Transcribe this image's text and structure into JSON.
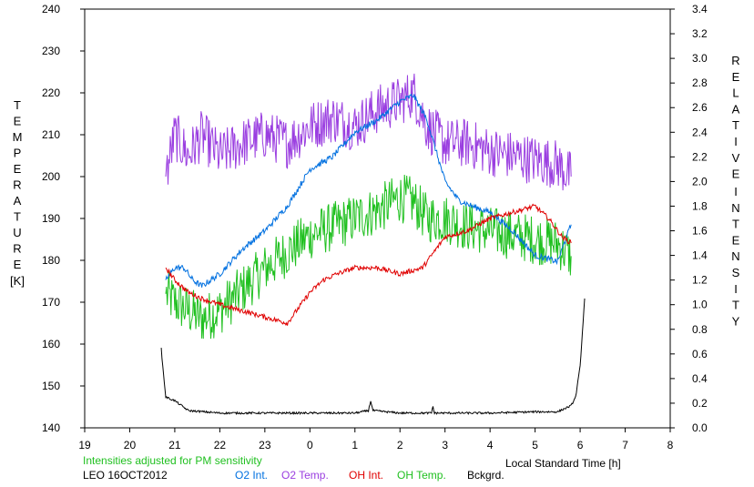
{
  "chart_data": {
    "type": "line",
    "xlabel": "Local Standard Time [h]",
    "ylabel_left": "TEMPERATURE",
    "ylabel_left_unit": "[K]",
    "ylabel_right": "RELATIVE INTENSITY",
    "x_ticks": [
      19,
      20,
      21,
      22,
      23,
      0,
      1,
      2,
      3,
      4,
      5,
      6,
      7,
      8
    ],
    "xlim": [
      19,
      32
    ],
    "ylim_left": [
      140,
      240
    ],
    "ylim_right": [
      0.0,
      3.4
    ],
    "y_ticks_left": [
      140,
      150,
      160,
      170,
      180,
      190,
      200,
      210,
      220,
      230,
      240
    ],
    "y_ticks_right": [
      "0.0",
      "0.2",
      "0.4",
      "0.6",
      "0.8",
      "1.0",
      "1.2",
      "1.4",
      "1.6",
      "1.8",
      "2.0",
      "2.2",
      "2.4",
      "2.6",
      "2.8",
      "3.0",
      "3.2",
      "3.4"
    ],
    "note": "Intensities adjusted for PM sensitivity",
    "site_date": "LEO 16OCT2012",
    "series": [
      {
        "name": "O2 Int.",
        "axis": "right",
        "color": "#0070e0",
        "x": [
          20.8,
          21.0,
          21.2,
          21.4,
          21.6,
          22.0,
          22.5,
          23.0,
          23.5,
          24.0,
          24.5,
          25.0,
          25.5,
          26.0,
          26.3,
          26.6,
          27.0,
          27.3,
          27.6,
          28.0,
          28.5,
          29.0,
          29.5,
          29.8
        ],
        "y": [
          1.2,
          1.3,
          1.3,
          1.2,
          1.15,
          1.25,
          1.45,
          1.6,
          1.8,
          2.1,
          2.2,
          2.4,
          2.5,
          2.65,
          2.7,
          2.5,
          2.0,
          1.85,
          1.8,
          1.75,
          1.6,
          1.4,
          1.35,
          1.65
        ]
      },
      {
        "name": "O2 Temp.",
        "axis": "left",
        "color": "#9a3ee0",
        "x": [
          20.8,
          21.0,
          21.3,
          21.6,
          22.0,
          22.5,
          23.0,
          23.5,
          24.0,
          24.5,
          25.0,
          25.5,
          26.0,
          26.3,
          26.6,
          27.0,
          27.5,
          28.0,
          28.5,
          29.0,
          29.5,
          29.8
        ],
        "y": [
          200,
          210,
          205,
          210,
          205,
          208,
          210,
          208,
          212,
          214,
          212,
          216,
          218,
          220,
          212,
          208,
          208,
          206,
          205,
          204,
          203,
          200
        ]
      },
      {
        "name": "OH Int.",
        "axis": "right",
        "color": "#e00000",
        "x": [
          20.8,
          21.0,
          21.3,
          21.6,
          22.0,
          22.5,
          23.0,
          23.5,
          24.0,
          24.3,
          24.6,
          25.0,
          25.5,
          26.0,
          26.5,
          26.7,
          27.0,
          27.5,
          28.0,
          28.5,
          29.0,
          29.3,
          29.6,
          29.8
        ],
        "y": [
          1.3,
          1.2,
          1.1,
          1.05,
          1.0,
          0.95,
          0.9,
          0.85,
          1.1,
          1.2,
          1.25,
          1.3,
          1.3,
          1.25,
          1.3,
          1.4,
          1.55,
          1.6,
          1.7,
          1.75,
          1.8,
          1.7,
          1.55,
          1.5
        ]
      },
      {
        "name": "OH Temp.",
        "axis": "left",
        "color": "#20c020",
        "x": [
          20.8,
          21.0,
          21.3,
          21.6,
          22.0,
          22.5,
          23.0,
          23.5,
          24.0,
          24.5,
          25.0,
          25.5,
          26.0,
          26.3,
          26.6,
          27.0,
          27.5,
          28.0,
          28.5,
          29.0,
          29.5,
          29.8
        ],
        "y": [
          172,
          170,
          168,
          166,
          168,
          173,
          178,
          182,
          186,
          188,
          190,
          192,
          195,
          194,
          190,
          190,
          188,
          187,
          186,
          185,
          184,
          181
        ]
      },
      {
        "name": "Bckgrd.",
        "axis": "right",
        "color": "#000000",
        "x": [
          20.7,
          20.72,
          20.8,
          21.0,
          21.3,
          22.0,
          23.0,
          24.0,
          25.0,
          25.3,
          25.35,
          25.4,
          26.0,
          26.7,
          26.73,
          26.76,
          28.0,
          29.0,
          29.5,
          29.8,
          29.9,
          30.0,
          30.1
        ],
        "y": [
          0.65,
          0.55,
          0.25,
          0.22,
          0.14,
          0.12,
          0.12,
          0.12,
          0.12,
          0.14,
          0.22,
          0.14,
          0.12,
          0.12,
          0.18,
          0.12,
          0.12,
          0.13,
          0.13,
          0.18,
          0.25,
          0.5,
          1.05
        ]
      }
    ]
  }
}
